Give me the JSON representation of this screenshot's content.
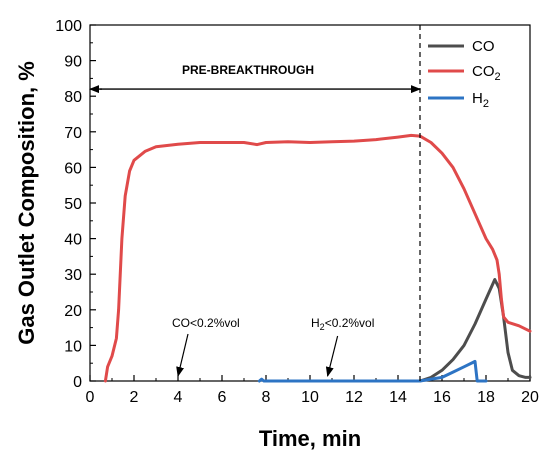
{
  "chart_data": {
    "type": "line",
    "title": "",
    "xlabel": "Time, min",
    "ylabel": "Gas Outlet Composition, %",
    "xlim": [
      0,
      20
    ],
    "ylim": [
      0,
      100
    ],
    "xticks": [
      0,
      2,
      4,
      6,
      8,
      10,
      12,
      14,
      16,
      18,
      20
    ],
    "yticks": [
      0,
      10,
      20,
      30,
      40,
      50,
      60,
      70,
      80,
      90,
      100
    ],
    "grid": false,
    "legend_position": "top-right",
    "series": [
      {
        "name": "CO",
        "color": "#4d4d4d",
        "points": [
          [
            15.0,
            0
          ],
          [
            15.5,
            1
          ],
          [
            16.0,
            3
          ],
          [
            16.5,
            6
          ],
          [
            17.0,
            10
          ],
          [
            17.5,
            16
          ],
          [
            18.0,
            23
          ],
          [
            18.4,
            28.5
          ],
          [
            18.6,
            26
          ],
          [
            18.8,
            18
          ],
          [
            19.0,
            8
          ],
          [
            19.2,
            3
          ],
          [
            19.5,
            1.5
          ],
          [
            19.8,
            1
          ],
          [
            20.0,
            1
          ]
        ]
      },
      {
        "name": "CO",
        "name_subscript": "2",
        "color": "#e04a4a",
        "points": [
          [
            0.7,
            0
          ],
          [
            0.8,
            4
          ],
          [
            1.0,
            7
          ],
          [
            1.2,
            12
          ],
          [
            1.3,
            20
          ],
          [
            1.45,
            40
          ],
          [
            1.6,
            52
          ],
          [
            1.8,
            59
          ],
          [
            2.0,
            62
          ],
          [
            2.5,
            64.5
          ],
          [
            3.0,
            65.8
          ],
          [
            4.0,
            66.5
          ],
          [
            5.0,
            67
          ],
          [
            6.0,
            67
          ],
          [
            7.0,
            67
          ],
          [
            7.6,
            66.4
          ],
          [
            8.0,
            67
          ],
          [
            9.0,
            67.2
          ],
          [
            10.0,
            67
          ],
          [
            11.0,
            67.2
          ],
          [
            12.0,
            67.4
          ],
          [
            13.0,
            67.8
          ],
          [
            14.0,
            68.5
          ],
          [
            14.6,
            69
          ],
          [
            15.0,
            68.8
          ],
          [
            15.5,
            67
          ],
          [
            16.0,
            64
          ],
          [
            16.5,
            60
          ],
          [
            17.0,
            54
          ],
          [
            17.5,
            47
          ],
          [
            18.0,
            40
          ],
          [
            18.3,
            37
          ],
          [
            18.5,
            34
          ],
          [
            18.6,
            30
          ],
          [
            18.7,
            23
          ],
          [
            18.8,
            18
          ],
          [
            19.0,
            16.5
          ],
          [
            19.5,
            15.5
          ],
          [
            20.0,
            14
          ]
        ]
      },
      {
        "name": "H",
        "name_subscript": "2",
        "color": "#2d74c4",
        "points": [
          [
            7.7,
            0
          ],
          [
            7.8,
            0.5
          ],
          [
            7.9,
            0
          ],
          [
            8.0,
            0
          ],
          [
            15.0,
            0
          ],
          [
            16.0,
            1
          ],
          [
            16.5,
            2.5
          ],
          [
            17.0,
            4
          ],
          [
            17.4,
            5.2
          ],
          [
            17.5,
            5.5
          ],
          [
            17.6,
            0
          ],
          [
            18.0,
            0
          ]
        ]
      }
    ],
    "annotations": {
      "vline_x": 15,
      "arrow_y": 82,
      "arrow_x": [
        0,
        15
      ],
      "pre_breakthrough": "PRE-BREAKTHROUGH",
      "co_note": "CO<0.2%vol",
      "h2_note_prefix": "H",
      "h2_note_sub": "2",
      "h2_note_suffix": "<0.2%vol",
      "co_note_arrow_target": [
        4,
        0
      ],
      "h2_note_arrow_target": [
        10.8,
        0
      ]
    }
  }
}
